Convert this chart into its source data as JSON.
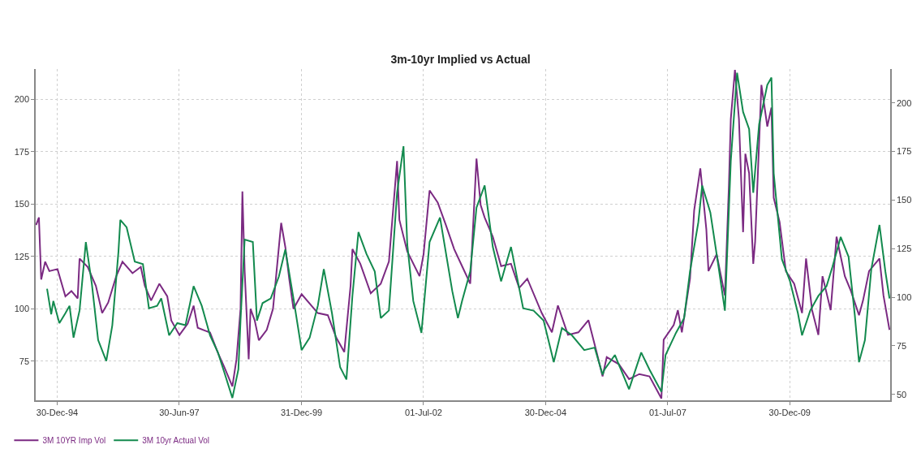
{
  "chart_data": {
    "type": "line",
    "title": "3m-10yr Implied vs Actual",
    "legend": "bottom left",
    "grid": true,
    "line_style": "solid",
    "xlim": [
      "1994-07-22",
      "2012-01-20"
    ],
    "xticks": [
      {
        "value": "1994-12-30",
        "label": "30-Dec-94"
      },
      {
        "value": "1997-06-30",
        "label": "30-Jun-97"
      },
      {
        "value": "1999-12-31",
        "label": "31-Dec-99"
      },
      {
        "value": "2002-07-01",
        "label": "01-Jul-02"
      },
      {
        "value": "2004-12-30",
        "label": "30-Dec-04"
      },
      {
        "value": "2007-07-01",
        "label": "01-Jul-07"
      },
      {
        "value": "2009-12-30",
        "label": "30-Dec-09"
      }
    ],
    "ylim": [
      56.4,
      214.4
    ],
    "yticks": [
      75,
      100,
      125,
      150,
      175,
      200
    ],
    "y2lim": [
      47,
      217.4
    ],
    "y2ticks": [
      50,
      75,
      100,
      125,
      150,
      175,
      200
    ],
    "series": [
      {
        "name": "3M 10YR Imp Vol",
        "color": "#7b2a82",
        "x": [
          "1994-07-25",
          "1994-08-15",
          "1994-09-01",
          "1994-10-01",
          "1994-11-01",
          "1995-01-01",
          "1995-03-01",
          "1995-04-15",
          "1995-06-01",
          "1995-06-15",
          "1995-08-15",
          "1995-10-15",
          "1995-12-01",
          "1996-01-15",
          "1996-03-15",
          "1996-05-01",
          "1996-07-15",
          "1996-09-15",
          "1996-10-15",
          "1996-12-01",
          "1997-02-01",
          "1997-04-01",
          "1997-05-01",
          "1997-07-01",
          "1997-09-01",
          "1997-10-15",
          "1997-11-15",
          "1998-02-15",
          "1998-04-15",
          "1998-06-01",
          "1998-08-01",
          "1998-09-01",
          "1998-10-01",
          "1998-10-15",
          "1998-11-01",
          "1998-12-01",
          "1998-12-15",
          "1999-01-15",
          "1999-02-15",
          "1999-04-15",
          "1999-06-01",
          "1999-08-01",
          "1999-09-01",
          "1999-10-01",
          "1999-11-01",
          "2000-01-01",
          "2000-05-01",
          "2000-07-15",
          "2000-09-15",
          "2000-11-15",
          "2001-01-01",
          "2001-01-15",
          "2001-03-15",
          "2001-06-01",
          "2001-08-15",
          "2001-10-15",
          "2001-12-15",
          "2002-01-01",
          "2002-03-01",
          "2002-06-01",
          "2002-07-01",
          "2002-08-15",
          "2002-10-15",
          "2002-12-15",
          "2003-02-15",
          "2003-04-15",
          "2003-06-15",
          "2003-08-01",
          "2003-09-01",
          "2003-10-01",
          "2003-12-01",
          "2004-02-01",
          "2004-04-15",
          "2004-06-15",
          "2004-08-15",
          "2004-12-01",
          "2005-02-15",
          "2005-04-01",
          "2005-06-15",
          "2005-09-01",
          "2005-11-15",
          "2006-01-15",
          "2006-03-01",
          "2006-04-01",
          "2006-07-01",
          "2006-09-15",
          "2006-12-01",
          "2007-02-15",
          "2007-05-15",
          "2007-06-01",
          "2007-08-15",
          "2007-09-15",
          "2007-10-15",
          "2007-12-15",
          "2008-01-15",
          "2008-03-01",
          "2008-04-15",
          "2008-05-01",
          "2008-07-01",
          "2008-09-01",
          "2008-10-01",
          "2008-10-15",
          "2008-11-15",
          "2008-12-15",
          "2009-01-15",
          "2009-02-01",
          "2009-03-01",
          "2009-04-01",
          "2009-04-15",
          "2009-06-01",
          "2009-07-15",
          "2009-08-15",
          "2009-09-01",
          "2009-10-15",
          "2009-12-01",
          "2010-02-01",
          "2010-04-01",
          "2010-05-01",
          "2010-06-15",
          "2010-08-01",
          "2010-09-01",
          "2010-11-01",
          "2010-12-15",
          "2011-02-15",
          "2011-04-01",
          "2011-06-01",
          "2011-07-01",
          "2011-08-15",
          "2011-11-01",
          "2011-12-01",
          "2012-01-15"
        ],
        "values": [
          140,
          143.6,
          114,
          122.5,
          118,
          119,
          106,
          108.5,
          105,
          124,
          120,
          111,
          98,
          103,
          115.5,
          122.5,
          117,
          120,
          111,
          104,
          112,
          106,
          94.5,
          87.5,
          93,
          101.5,
          91,
          88.7,
          79,
          72.3,
          63,
          76,
          100,
          156,
          118,
          76,
          100,
          94.5,
          85,
          90,
          100,
          141,
          129.5,
          114,
          100,
          107,
          98,
          97,
          86.4,
          79.4,
          111,
          128.5,
          121.5,
          107.4,
          112,
          122.6,
          170.5,
          142.5,
          127.4,
          115.6,
          126,
          156.5,
          150.7,
          140,
          128.5,
          120.4,
          112,
          171.7,
          149.5,
          143.6,
          134.4,
          120.4,
          121.5,
          110,
          114.4,
          98,
          88.8,
          101.6,
          87.6,
          88.8,
          94.6,
          79.4,
          67.8,
          77,
          73.6,
          66.5,
          68.9,
          67.8,
          57.3,
          85.3,
          92.3,
          99.4,
          88.8,
          114.4,
          147,
          167,
          138,
          118,
          126,
          106.4,
          159,
          190.5,
          214,
          190.5,
          136.6,
          174,
          164.7,
          121.5,
          132,
          206.8,
          187,
          196,
          153,
          141.4,
          118,
          112,
          98,
          124,
          99.4,
          87.6,
          115.6,
          99.4,
          134.4,
          115.6,
          108.6,
          97,
          104,
          118,
          124,
          106.4,
          90
        ]
      },
      {
        "name": "3M 10yr Actual Vol",
        "color": "#138a4e",
        "axis": "y2",
        "x": [
          "1994-10-15",
          "1994-11-15",
          "1994-12-01",
          "1995-01-15",
          "1995-03-01",
          "1995-04-01",
          "1995-05-01",
          "1995-06-15",
          "1995-08-01",
          "1995-09-15",
          "1995-11-01",
          "1996-01-01",
          "1996-02-15",
          "1996-04-01",
          "1996-04-15",
          "1996-06-01",
          "1996-08-01",
          "1996-10-01",
          "1996-11-15",
          "1997-01-15",
          "1997-02-15",
          "1997-04-15",
          "1997-06-15",
          "1997-08-15",
          "1997-10-15",
          "1997-12-15",
          "1998-02-15",
          "1998-04-15",
          "1998-06-01",
          "1998-08-01",
          "1998-09-15",
          "1998-10-01",
          "1998-11-01",
          "1999-01-01",
          "1999-02-01",
          "1999-03-15",
          "1999-05-15",
          "1999-07-15",
          "1999-09-01",
          "1999-11-01",
          "2000-01-01",
          "2000-03-01",
          "2000-05-01",
          "2000-06-15",
          "2000-08-15",
          "2000-10-15",
          "2000-12-01",
          "2001-01-15",
          "2001-03-01",
          "2001-05-01",
          "2001-07-01",
          "2001-08-15",
          "2001-10-15",
          "2001-12-15",
          "2002-02-01",
          "2002-03-01",
          "2002-04-15",
          "2002-06-15",
          "2002-08-15",
          "2002-11-01",
          "2003-02-01",
          "2003-03-15",
          "2003-04-15",
          "2003-06-15",
          "2003-08-01",
          "2003-10-01",
          "2003-12-01",
          "2004-02-01",
          "2004-04-15",
          "2004-07-15",
          "2004-10-01",
          "2004-12-15",
          "2005-03-01",
          "2005-05-01",
          "2005-07-15",
          "2005-10-15",
          "2006-01-01",
          "2006-03-01",
          "2006-03-15",
          "2006-06-01",
          "2006-09-15",
          "2006-12-15",
          "2007-02-15",
          "2007-05-15",
          "2007-06-15",
          "2007-09-01",
          "2007-11-01",
          "2007-12-15",
          "2008-02-15",
          "2008-03-15",
          "2008-05-15",
          "2008-07-15",
          "2008-09-01",
          "2008-10-15",
          "2008-12-01",
          "2009-01-15",
          "2009-03-01",
          "2009-04-01",
          "2009-05-15",
          "2009-07-15",
          "2009-08-15",
          "2009-09-01",
          "2009-11-01",
          "2010-01-01",
          "2010-03-01",
          "2010-04-01",
          "2010-06-01",
          "2010-08-01",
          "2010-10-01",
          "2010-11-15",
          "2011-01-15",
          "2011-03-15",
          "2011-05-01",
          "2011-06-01",
          "2011-07-15",
          "2011-09-01",
          "2011-11-01",
          "2011-12-15",
          "2012-01-15"
        ],
        "values": [
          104.4,
          91.2,
          98.1,
          86.7,
          91.8,
          95.6,
          79.2,
          93.2,
          128.4,
          106.9,
          78,
          67.2,
          85.6,
          123.5,
          139.8,
          136,
          118.3,
          117,
          94.3,
          95.6,
          99.4,
          80.4,
          86.7,
          85.6,
          105.7,
          95.6,
          80.4,
          71.6,
          61.5,
          48.2,
          62.9,
          88,
          129.7,
          128.4,
          88,
          97,
          99.4,
          110.7,
          124.6,
          99.4,
          72.8,
          79.2,
          95.6,
          114.5,
          91.8,
          64,
          57.7,
          100.8,
          133.5,
          122.1,
          113.3,
          89.3,
          93.2,
          153.7,
          177.7,
          127.2,
          98.1,
          81.7,
          128.4,
          141,
          103.1,
          89.3,
          98.1,
          113.3,
          146.1,
          157.5,
          125.9,
          108.2,
          125.9,
          94.3,
          93.1,
          88,
          66.6,
          84.2,
          80.4,
          72.8,
          74.1,
          60.2,
          62.8,
          70.3,
          52.7,
          71.6,
          62.8,
          51.4,
          70.3,
          81.7,
          89.3,
          113.3,
          138.5,
          157.5,
          143.6,
          115.8,
          93.1,
          170.1,
          215.5,
          195.3,
          186.5,
          153.7,
          189,
          209.2,
          213,
          163.8,
          119.6,
          108.2,
          91.8,
          80.4,
          93.1,
          100.7,
          105.7,
          115.8,
          131,
          120.8,
          90.5,
          66.6,
          77.9,
          114.5,
          137.2,
          113.3,
          99.4
        ]
      }
    ]
  }
}
